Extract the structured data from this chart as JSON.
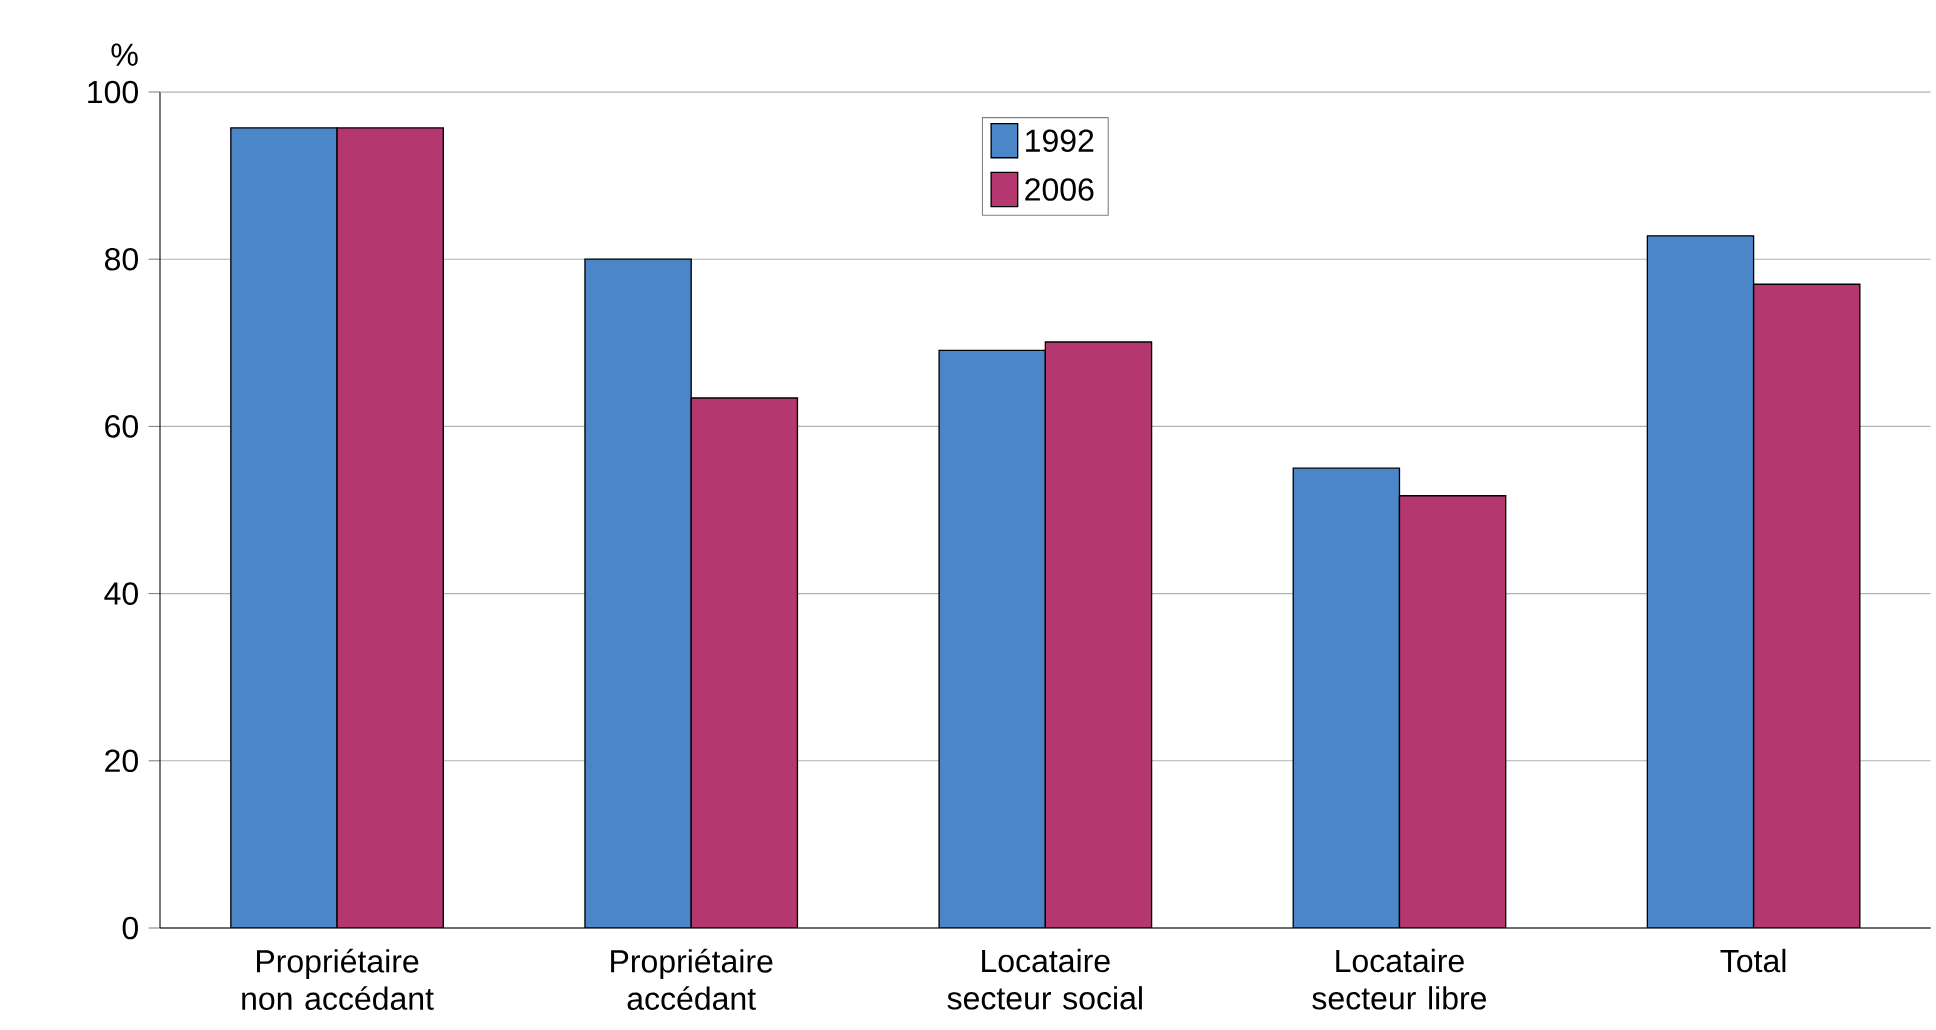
{
  "chart_data": {
    "type": "bar",
    "ylabel": "%",
    "categories": [
      "Propriétaire non accédant",
      "Propriétaire accédant",
      "Locataire secteur social",
      "Locataire secteur libre",
      "Total"
    ],
    "series": [
      {
        "name": "1992",
        "color": "#4a86c8",
        "values": [
          95.7,
          80,
          69.1,
          55,
          82.8
        ]
      },
      {
        "name": "2006",
        "color": "#b5376f",
        "values": [
          95.7,
          63.4,
          70.1,
          51.7,
          77
        ]
      }
    ],
    "ylim": [
      0,
      100
    ],
    "yticks": [
      0,
      20,
      40,
      60,
      80,
      100
    ],
    "grid": "y",
    "legend": "top"
  }
}
